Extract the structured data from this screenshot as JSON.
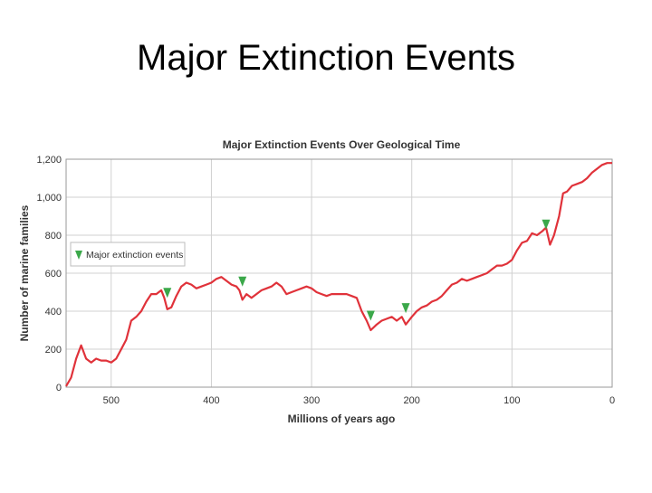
{
  "slide": {
    "title": "Major Extinction Events"
  },
  "chart_data": {
    "type": "line",
    "title": "Major Extinction Events Over Geological Time",
    "xlabel": "Millions of years ago",
    "ylabel": "Number of marine families",
    "xlim": [
      545,
      0
    ],
    "ylim": [
      0,
      1200
    ],
    "x_ticks": [
      500,
      400,
      300,
      200,
      100,
      0
    ],
    "x_tick_labels": [
      "500",
      "400",
      "300",
      "200",
      "100",
      "0"
    ],
    "y_ticks": [
      0,
      200,
      400,
      600,
      800,
      1000,
      1200
    ],
    "y_tick_labels": [
      "0",
      "200",
      "400",
      "600",
      "800",
      "1,000",
      "1,200"
    ],
    "grid": true,
    "legend": {
      "position": "left",
      "entries": [
        "Major extinction events"
      ]
    },
    "line_color": "#e0323a",
    "marker_color": "#3ba84a",
    "series": [
      {
        "name": "Number of marine families",
        "points": [
          [
            545,
            5
          ],
          [
            540,
            50
          ],
          [
            535,
            150
          ],
          [
            530,
            220
          ],
          [
            525,
            150
          ],
          [
            520,
            130
          ],
          [
            515,
            150
          ],
          [
            510,
            140
          ],
          [
            505,
            140
          ],
          [
            500,
            130
          ],
          [
            495,
            150
          ],
          [
            490,
            200
          ],
          [
            485,
            250
          ],
          [
            480,
            350
          ],
          [
            475,
            370
          ],
          [
            470,
            400
          ],
          [
            465,
            450
          ],
          [
            460,
            490
          ],
          [
            455,
            490
          ],
          [
            450,
            510
          ],
          [
            447,
            470
          ],
          [
            444,
            410
          ],
          [
            440,
            420
          ],
          [
            435,
            480
          ],
          [
            430,
            530
          ],
          [
            425,
            550
          ],
          [
            420,
            540
          ],
          [
            415,
            520
          ],
          [
            410,
            530
          ],
          [
            405,
            540
          ],
          [
            400,
            550
          ],
          [
            395,
            570
          ],
          [
            390,
            580
          ],
          [
            385,
            560
          ],
          [
            380,
            540
          ],
          [
            375,
            530
          ],
          [
            372,
            510
          ],
          [
            369,
            460
          ],
          [
            365,
            490
          ],
          [
            360,
            470
          ],
          [
            355,
            490
          ],
          [
            350,
            510
          ],
          [
            345,
            520
          ],
          [
            340,
            530
          ],
          [
            335,
            550
          ],
          [
            330,
            530
          ],
          [
            325,
            490
          ],
          [
            320,
            500
          ],
          [
            315,
            510
          ],
          [
            310,
            520
          ],
          [
            305,
            530
          ],
          [
            300,
            520
          ],
          [
            295,
            500
          ],
          [
            290,
            490
          ],
          [
            285,
            480
          ],
          [
            280,
            490
          ],
          [
            275,
            490
          ],
          [
            270,
            490
          ],
          [
            265,
            490
          ],
          [
            260,
            480
          ],
          [
            255,
            470
          ],
          [
            250,
            400
          ],
          [
            245,
            350
          ],
          [
            241,
            300
          ],
          [
            235,
            330
          ],
          [
            230,
            350
          ],
          [
            225,
            360
          ],
          [
            220,
            370
          ],
          [
            215,
            350
          ],
          [
            210,
            370
          ],
          [
            206,
            330
          ],
          [
            200,
            370
          ],
          [
            195,
            400
          ],
          [
            190,
            420
          ],
          [
            185,
            430
          ],
          [
            180,
            450
          ],
          [
            175,
            460
          ],
          [
            170,
            480
          ],
          [
            165,
            510
          ],
          [
            160,
            540
          ],
          [
            155,
            550
          ],
          [
            150,
            570
          ],
          [
            145,
            560
          ],
          [
            140,
            570
          ],
          [
            135,
            580
          ],
          [
            130,
            590
          ],
          [
            125,
            600
          ],
          [
            120,
            620
          ],
          [
            115,
            640
          ],
          [
            110,
            640
          ],
          [
            105,
            650
          ],
          [
            100,
            670
          ],
          [
            95,
            720
          ],
          [
            90,
            760
          ],
          [
            85,
            770
          ],
          [
            80,
            810
          ],
          [
            75,
            800
          ],
          [
            70,
            820
          ],
          [
            66,
            840
          ],
          [
            62,
            750
          ],
          [
            58,
            800
          ],
          [
            53,
            900
          ],
          [
            49,
            1020
          ],
          [
            45,
            1030
          ],
          [
            40,
            1060
          ],
          [
            35,
            1070
          ],
          [
            30,
            1080
          ],
          [
            25,
            1100
          ],
          [
            20,
            1130
          ],
          [
            15,
            1150
          ],
          [
            10,
            1170
          ],
          [
            5,
            1180
          ],
          [
            0,
            1180
          ]
        ]
      }
    ],
    "extinction_events": [
      {
        "x": 444,
        "y": 470
      },
      {
        "x": 369,
        "y": 530
      },
      {
        "x": 241,
        "y": 350
      },
      {
        "x": 206,
        "y": 390
      },
      {
        "x": 66,
        "y": 830
      }
    ]
  }
}
